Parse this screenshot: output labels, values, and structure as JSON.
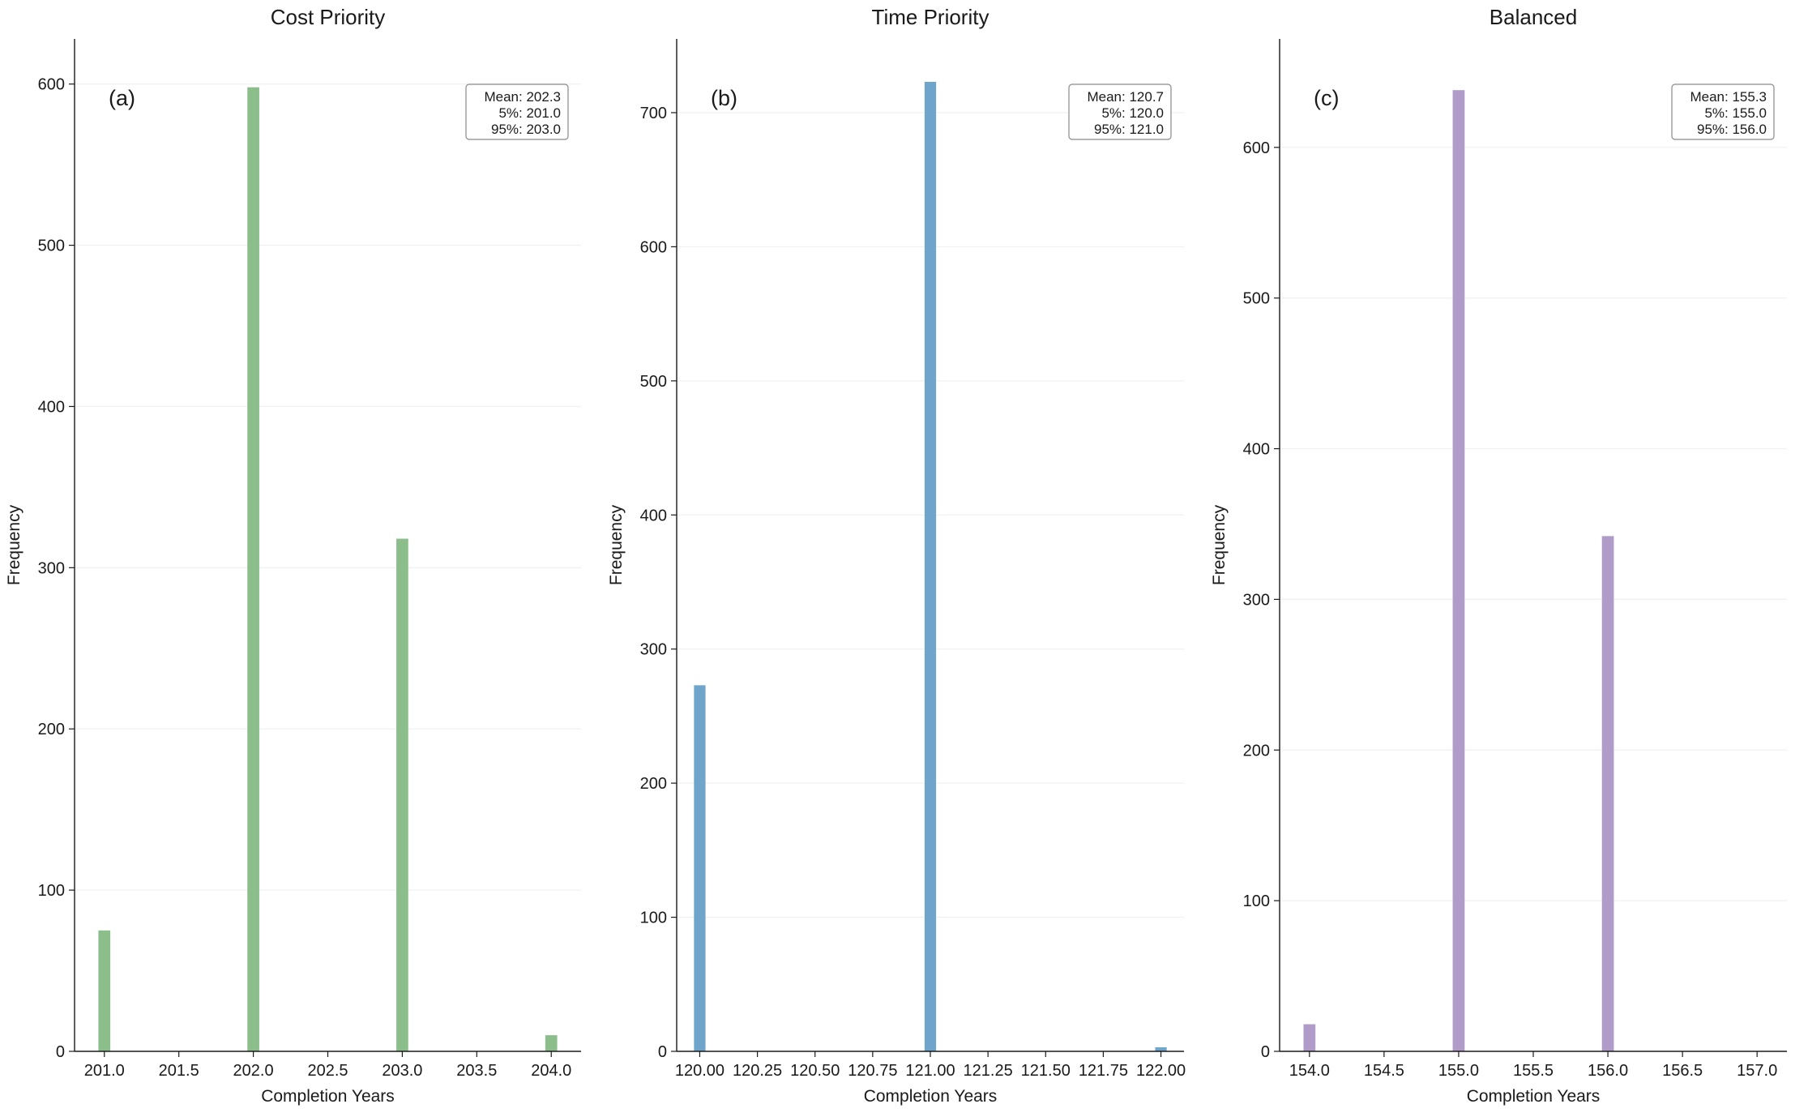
{
  "figure": {
    "background": "#ffffff",
    "spine_color": "#1a1a1a",
    "grid_color": "#f0f0f0"
  },
  "chart_data": [
    {
      "type": "bar",
      "panel_label": "(a)",
      "title": "Cost Priority",
      "xlabel": "Completion Years",
      "ylabel": "Frequency",
      "color": "#8CBE8C",
      "xlim": [
        200.8,
        204.2
      ],
      "ylim": [
        0,
        628
      ],
      "bar_width": 0.08,
      "grid": true,
      "xticks": [
        {
          "v": 201.0,
          "label": "201.0"
        },
        {
          "v": 201.5,
          "label": "201.5"
        },
        {
          "v": 202.0,
          "label": "202.0"
        },
        {
          "v": 202.5,
          "label": "202.5"
        },
        {
          "v": 203.0,
          "label": "203.0"
        },
        {
          "v": 203.5,
          "label": "203.5"
        },
        {
          "v": 204.0,
          "label": "204.0"
        }
      ],
      "yticks": [
        0,
        100,
        200,
        300,
        400,
        500,
        600
      ],
      "bars": [
        {
          "x": 201.0,
          "value": 75
        },
        {
          "x": 202.0,
          "value": 598
        },
        {
          "x": 203.0,
          "value": 318
        },
        {
          "x": 204.0,
          "value": 10
        }
      ],
      "stats": [
        "Mean: 202.3",
        "5%: 201.0",
        "95%: 203.0"
      ],
      "legend_position": "top-right"
    },
    {
      "type": "bar",
      "panel_label": "(b)",
      "title": "Time Priority",
      "xlabel": "Completion Years",
      "ylabel": "Frequency",
      "color": "#6FA5CB",
      "xlim": [
        119.9,
        122.1
      ],
      "ylim": [
        0,
        755
      ],
      "bar_width": 0.05,
      "grid": true,
      "xticks": [
        {
          "v": 120.0,
          "label": "120.00"
        },
        {
          "v": 120.25,
          "label": "120.25"
        },
        {
          "v": 120.5,
          "label": "120.50"
        },
        {
          "v": 120.75,
          "label": "120.75"
        },
        {
          "v": 121.0,
          "label": "121.00"
        },
        {
          "v": 121.25,
          "label": "121.25"
        },
        {
          "v": 121.5,
          "label": "121.50"
        },
        {
          "v": 121.75,
          "label": "121.75"
        },
        {
          "v": 122.0,
          "label": "122.00"
        }
      ],
      "yticks": [
        0,
        100,
        200,
        300,
        400,
        500,
        600,
        700
      ],
      "bars": [
        {
          "x": 120.0,
          "value": 273
        },
        {
          "x": 121.0,
          "value": 723
        },
        {
          "x": 122.0,
          "value": 3
        }
      ],
      "stats": [
        "Mean: 120.7",
        "5%: 120.0",
        "95%: 121.0"
      ],
      "legend_position": "top-right"
    },
    {
      "type": "bar",
      "panel_label": "(c)",
      "title": "Balanced",
      "xlabel": "Completion Years",
      "ylabel": "Frequency",
      "color": "#B19CC9",
      "xlim": [
        153.8,
        157.2
      ],
      "ylim": [
        0,
        672
      ],
      "bar_width": 0.08,
      "grid": true,
      "xticks": [
        {
          "v": 154.0,
          "label": "154.0"
        },
        {
          "v": 154.5,
          "label": "154.5"
        },
        {
          "v": 155.0,
          "label": "155.0"
        },
        {
          "v": 155.5,
          "label": "155.5"
        },
        {
          "v": 156.0,
          "label": "156.0"
        },
        {
          "v": 156.5,
          "label": "156.5"
        },
        {
          "v": 157.0,
          "label": "157.0"
        }
      ],
      "yticks": [
        0,
        100,
        200,
        300,
        400,
        500,
        600
      ],
      "bars": [
        {
          "x": 154.0,
          "value": 18
        },
        {
          "x": 155.0,
          "value": 638
        },
        {
          "x": 156.0,
          "value": 342
        }
      ],
      "stats": [
        "Mean: 155.3",
        "5%: 155.0",
        "95%: 156.0"
      ],
      "legend_position": "top-right"
    }
  ]
}
